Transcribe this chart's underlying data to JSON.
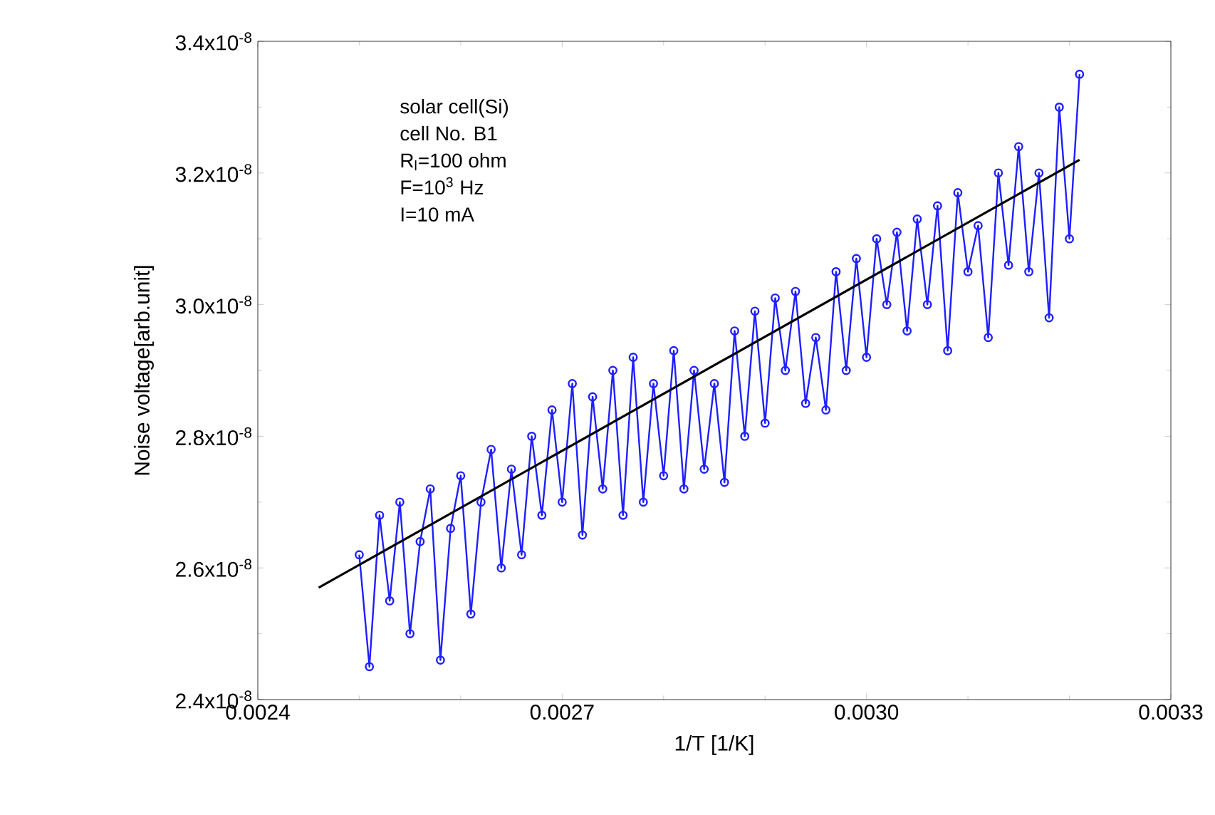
{
  "chart_data": {
    "type": "line",
    "xlabel": "1/T  [1/K]",
    "ylabel": "Noise voltage[arb.unit]",
    "annotations": [
      "solar cell(Si)",
      "cell No. B1",
      "R$_{l}$=100 ohm",
      "F=10$^{3}$ Hz",
      "I=10 mA"
    ],
    "xlim": [
      0.0024,
      0.0033
    ],
    "ylim": [
      2.4e-08,
      3.4e-08
    ],
    "xticks": [
      {
        "value": 0.0024,
        "label": "0.0024"
      },
      {
        "value": 0.0027,
        "label": "0.0027"
      },
      {
        "value": 0.003,
        "label": "0.0030"
      },
      {
        "value": 0.0033,
        "label": "0.0033"
      }
    ],
    "yticks": [
      {
        "value": 2.4e-08,
        "label": "2.4x10$^{-8}$"
      },
      {
        "value": 2.6e-08,
        "label": "2.6x10$^{-8}$"
      },
      {
        "value": 2.8e-08,
        "label": "2.8x10$^{-8}$"
      },
      {
        "value": 3e-08,
        "label": "3.0x10$^{-8}$"
      },
      {
        "value": 3.2e-08,
        "label": "3.2x10$^{-8}$"
      },
      {
        "value": 3.4e-08,
        "label": "3.4x10$^{-8}$"
      }
    ],
    "grid": false,
    "series": [
      {
        "marker": "circle",
        "color": "#1f1fff",
        "x": [
          0.0025,
          0.00251,
          0.00252,
          0.00253,
          0.00254,
          0.00255,
          0.00256,
          0.00257,
          0.00258,
          0.00259,
          0.0026,
          0.00261,
          0.00262,
          0.00263,
          0.00264,
          0.00265,
          0.00266,
          0.00267,
          0.00268,
          0.00269,
          0.0027,
          0.00271,
          0.00272,
          0.00273,
          0.00274,
          0.00275,
          0.00276,
          0.00277,
          0.00278,
          0.00279,
          0.0028,
          0.00281,
          0.00282,
          0.00283,
          0.00284,
          0.00285,
          0.00286,
          0.00287,
          0.00288,
          0.00289,
          0.0029,
          0.00291,
          0.00292,
          0.00293,
          0.00294,
          0.00295,
          0.00296,
          0.00297,
          0.00298,
          0.00299,
          0.003,
          0.00301,
          0.00302,
          0.00303,
          0.00304,
          0.00305,
          0.00306,
          0.00307,
          0.00308,
          0.00309,
          0.0031,
          0.00311,
          0.00312,
          0.00313,
          0.00314,
          0.00315,
          0.00316,
          0.00317,
          0.00318,
          0.00319,
          0.0032,
          0.00321
        ],
        "values": [
          2.62e-08,
          2.45e-08,
          2.68e-08,
          2.55e-08,
          2.7e-08,
          2.5e-08,
          2.64e-08,
          2.72e-08,
          2.46e-08,
          2.66e-08,
          2.74e-08,
          2.53e-08,
          2.7e-08,
          2.78e-08,
          2.6e-08,
          2.75e-08,
          2.62e-08,
          2.8e-08,
          2.68e-08,
          2.84e-08,
          2.7e-08,
          2.88e-08,
          2.65e-08,
          2.86e-08,
          2.72e-08,
          2.9e-08,
          2.68e-08,
          2.92e-08,
          2.7e-08,
          2.88e-08,
          2.74e-08,
          2.93e-08,
          2.72e-08,
          2.9e-08,
          2.75e-08,
          2.88e-08,
          2.73e-08,
          2.96e-08,
          2.8e-08,
          2.99e-08,
          2.82e-08,
          3.01e-08,
          2.9e-08,
          3.02e-08,
          2.85e-08,
          2.95e-08,
          2.84e-08,
          3.05e-08,
          2.9e-08,
          3.07e-08,
          2.92e-08,
          3.1e-08,
          3e-08,
          3.11e-08,
          2.96e-08,
          3.13e-08,
          3e-08,
          3.15e-08,
          2.93e-08,
          3.17e-08,
          3.05e-08,
          3.12e-08,
          2.95e-08,
          3.2e-08,
          3.06e-08,
          3.24e-08,
          3.05e-08,
          3.2e-08,
          2.98e-08,
          3.3e-08,
          3.1e-08,
          3.35e-08
        ]
      },
      {
        "marker": "none",
        "color": "#000000",
        "x": [
          0.00246,
          0.00321
        ],
        "values": [
          2.57e-08,
          3.22e-08
        ]
      }
    ]
  }
}
